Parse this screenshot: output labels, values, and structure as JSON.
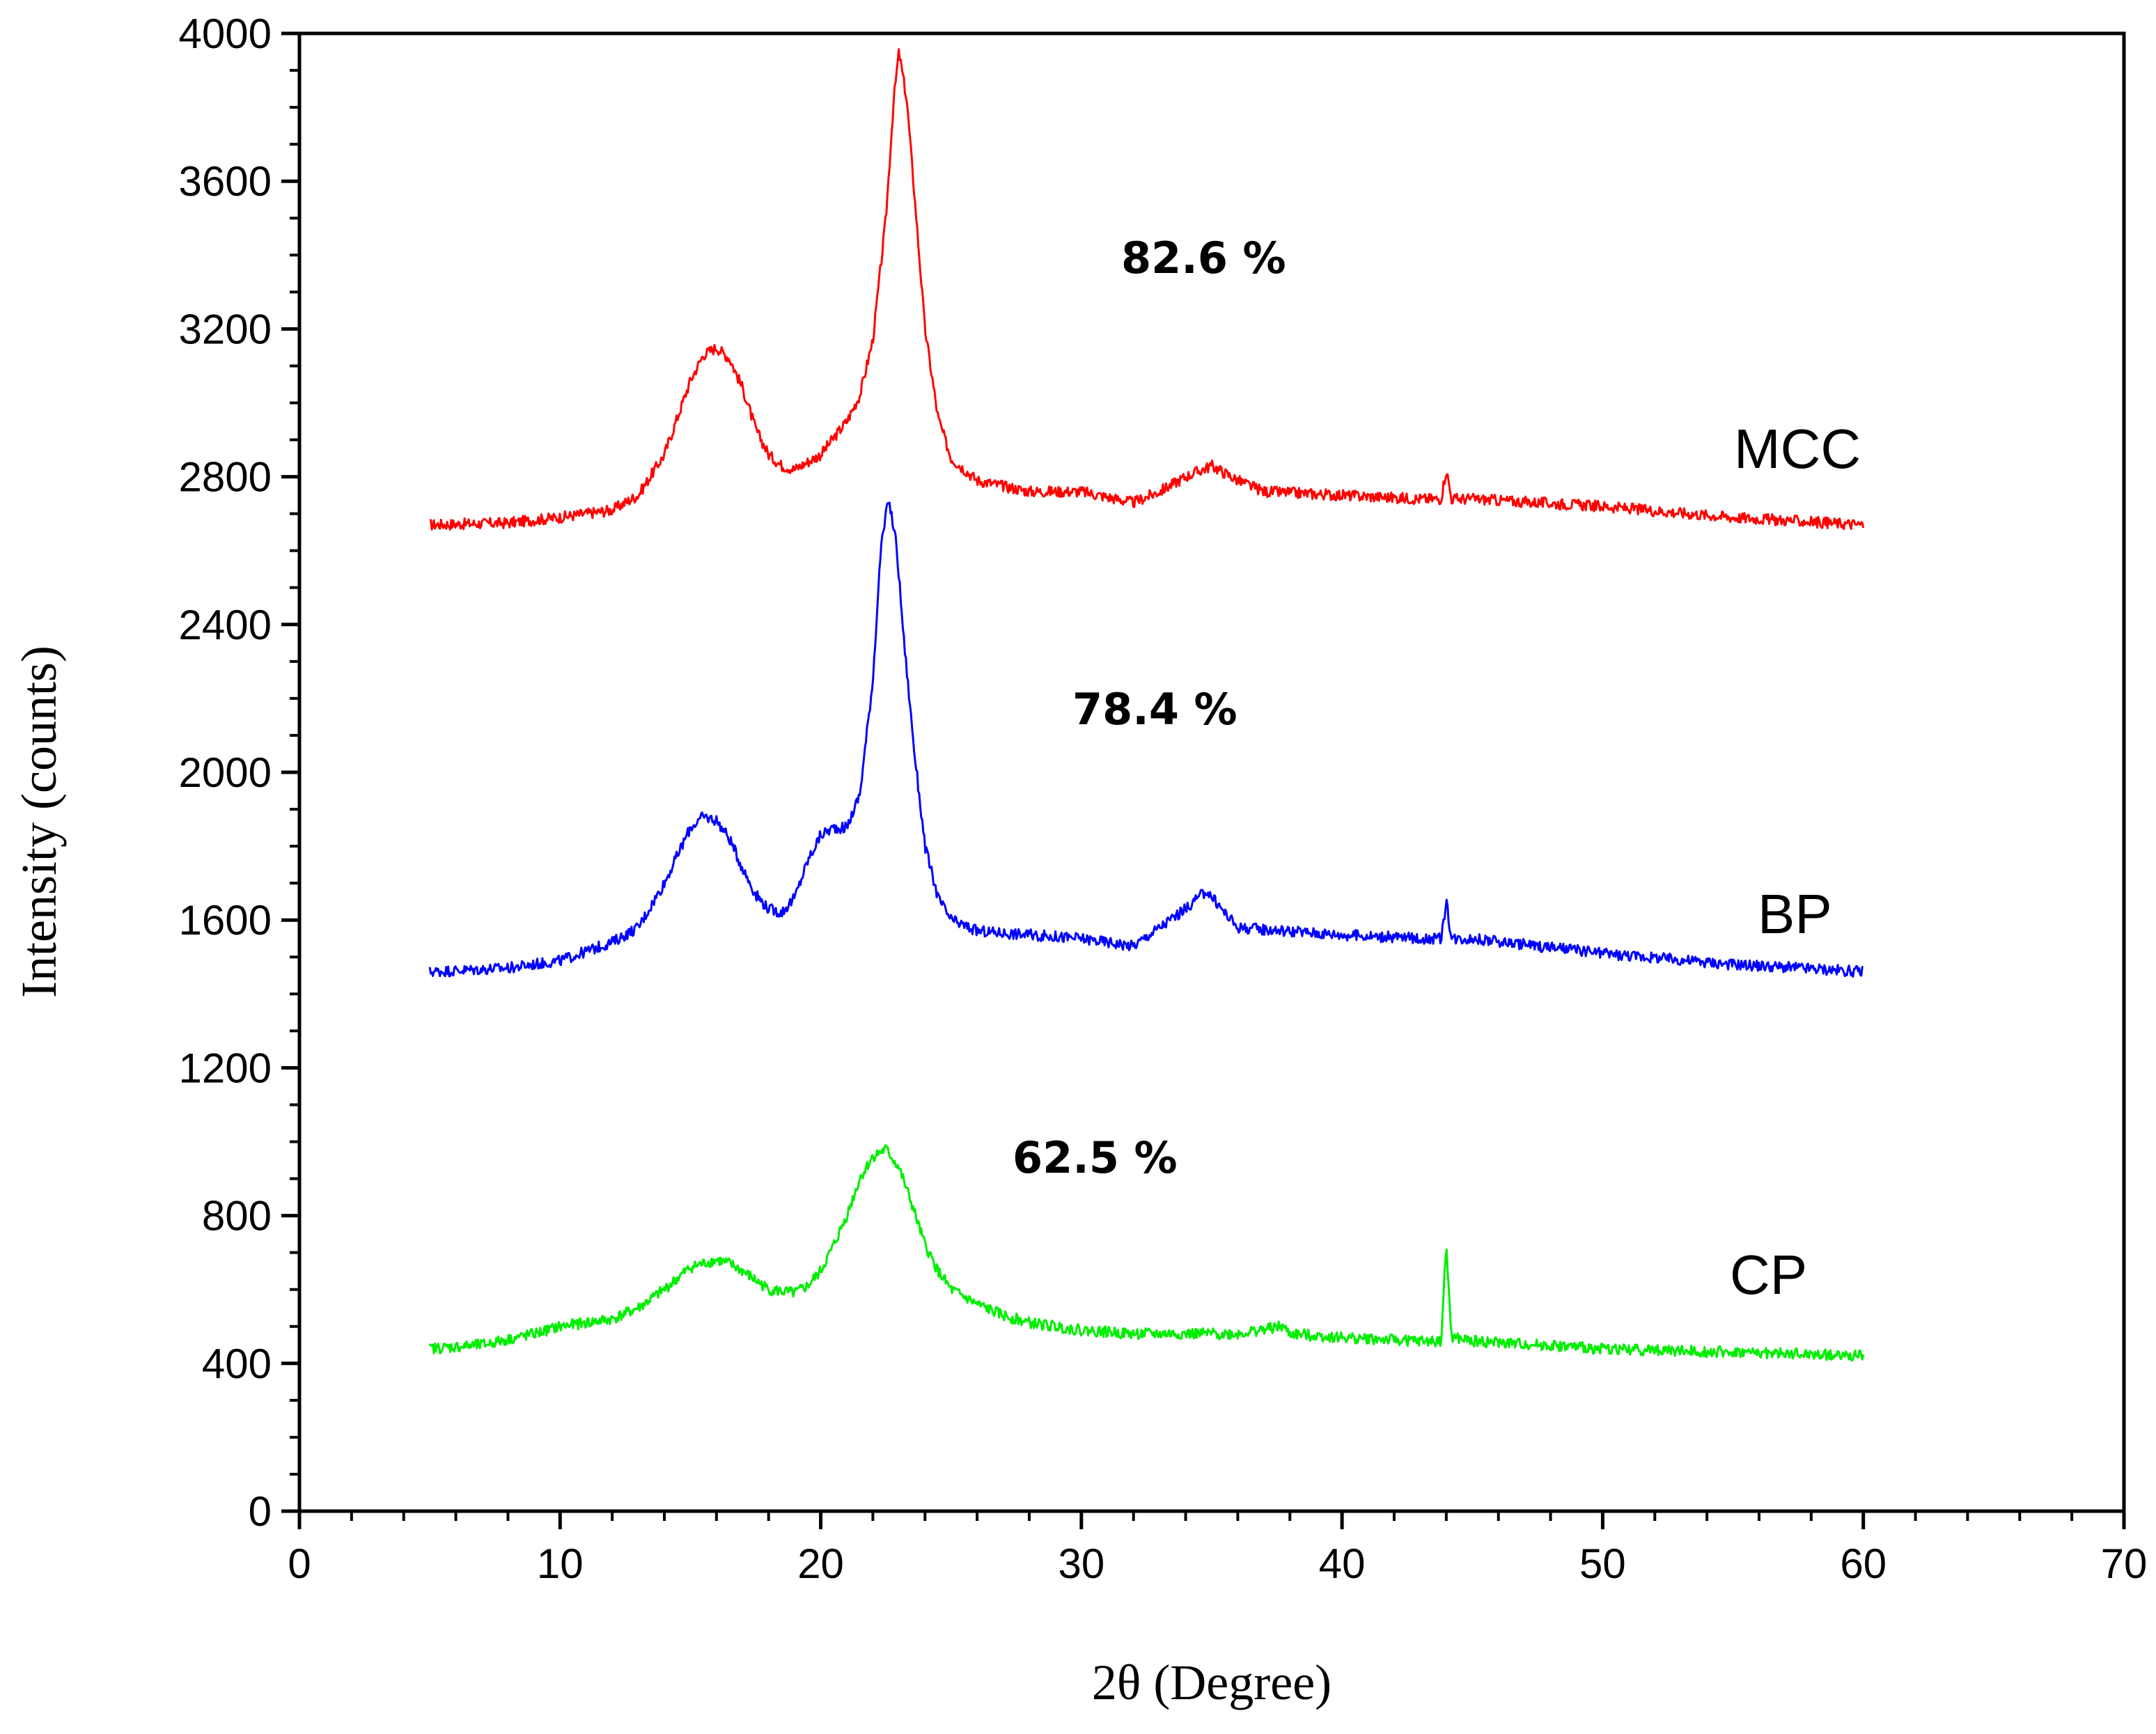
{
  "chart_data": {
    "type": "line",
    "title": "",
    "xlabel": "2θ (Degree)",
    "ylabel": "Intensity (counts)",
    "xlim": [
      0,
      70
    ],
    "ylim": [
      0,
      4000
    ],
    "xticks": [
      0,
      10,
      20,
      30,
      40,
      50,
      60,
      70
    ],
    "yticks": [
      0,
      400,
      800,
      1200,
      1600,
      2000,
      2400,
      2800,
      3200,
      3600,
      4000
    ],
    "grid": false,
    "legend": "none",
    "series": [
      {
        "name": "MCC",
        "color": "#ff0000",
        "crystallinity": "82.6 %",
        "x": [
          5,
          8,
          10,
          12,
          13,
          14,
          15,
          15.5,
          16,
          16.5,
          17,
          17.5,
          18,
          18.5,
          19,
          20,
          21,
          21.5,
          22,
          22.5,
          22.8,
          23,
          23.3,
          23.6,
          24,
          24.5,
          25,
          26,
          28,
          30,
          32,
          33,
          34,
          35,
          36,
          37,
          40,
          43,
          43.8,
          44,
          44.2,
          45,
          50,
          55,
          60
        ],
        "values": [
          2670,
          2675,
          2690,
          2710,
          2750,
          2860,
          3060,
          3130,
          3150,
          3120,
          3040,
          2930,
          2860,
          2830,
          2820,
          2860,
          2950,
          3020,
          3170,
          3500,
          3820,
          3950,
          3820,
          3560,
          3200,
          2960,
          2850,
          2790,
          2760,
          2760,
          2730,
          2760,
          2800,
          2830,
          2790,
          2760,
          2750,
          2740,
          2740,
          2820,
          2740,
          2740,
          2720,
          2690,
          2670
        ]
      },
      {
        "name": "BP",
        "color": "#0000ff",
        "crystallinity": "78.4 %",
        "x": [
          5,
          8,
          10,
          12,
          13,
          14,
          15,
          15.5,
          16,
          16.5,
          17,
          17.5,
          18,
          18.5,
          19,
          19.5,
          20,
          20.5,
          21,
          21.5,
          22,
          22.3,
          22.6,
          22.9,
          23.2,
          23.6,
          24,
          24.5,
          25,
          26,
          28,
          30,
          32,
          33,
          34,
          34.8,
          35.5,
          36,
          38,
          40,
          43,
          43.8,
          44,
          44.2,
          45,
          50,
          55,
          60
        ],
        "values": [
          1460,
          1470,
          1490,
          1540,
          1580,
          1700,
          1850,
          1880,
          1870,
          1820,
          1740,
          1670,
          1630,
          1620,
          1660,
          1760,
          1830,
          1850,
          1850,
          1940,
          2250,
          2600,
          2740,
          2620,
          2350,
          2050,
          1800,
          1660,
          1600,
          1570,
          1560,
          1550,
          1530,
          1580,
          1630,
          1680,
          1620,
          1580,
          1570,
          1560,
          1550,
          1550,
          1650,
          1550,
          1550,
          1510,
          1480,
          1460
        ]
      },
      {
        "name": "CP",
        "color": "#00ee00",
        "crystallinity": "62.5 %",
        "x": [
          5,
          7,
          9,
          10,
          12,
          13,
          14,
          15,
          16,
          16.5,
          17,
          18,
          19,
          19.5,
          20,
          20.5,
          21,
          21.5,
          22,
          22.5,
          23,
          23.5,
          24,
          24.5,
          25,
          26,
          27,
          28,
          30,
          32,
          34,
          36,
          37.7,
          38,
          40,
          43,
          43.8,
          44,
          44.2,
          45,
          50,
          55,
          60
        ],
        "values": [
          440,
          450,
          480,
          500,
          520,
          550,
          600,
          660,
          680,
          670,
          650,
          600,
          590,
          610,
          650,
          720,
          800,
          900,
          960,
          980,
          930,
          830,
          720,
          650,
          600,
          560,
          530,
          510,
          490,
          480,
          480,
          480,
          500,
          480,
          470,
          460,
          460,
          720,
          470,
          460,
          440,
          430,
          420
        ]
      }
    ],
    "annotations": [
      "82.6 %",
      "78.4 %",
      "62.5 %"
    ]
  }
}
